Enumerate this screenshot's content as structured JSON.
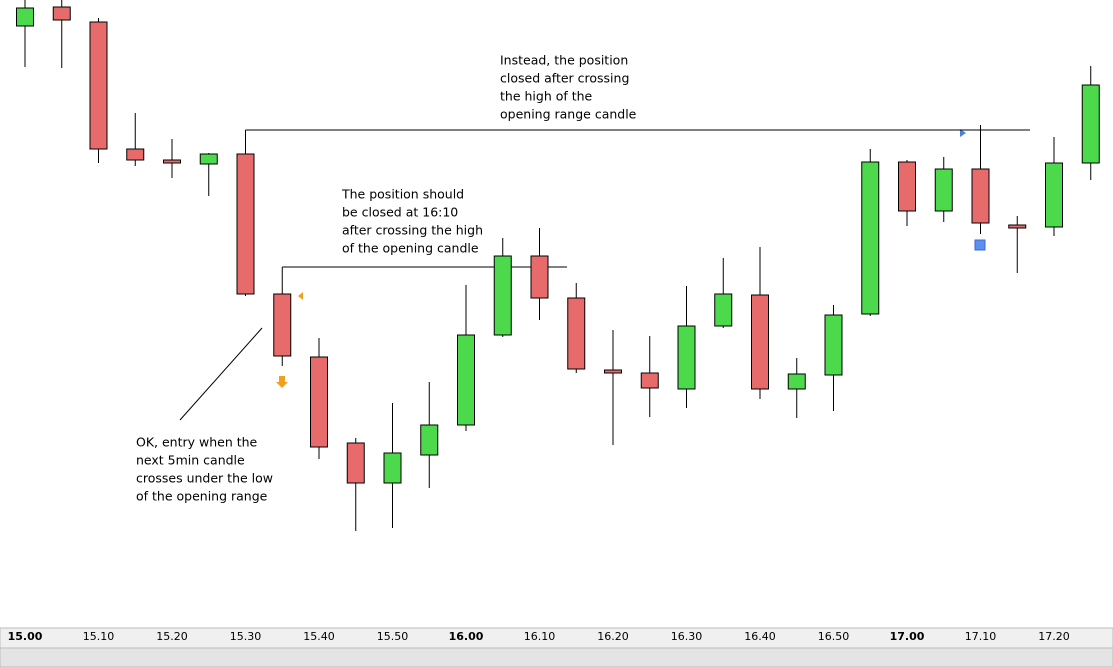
{
  "chart_data": {
    "type": "candlestick",
    "categories": [
      "15.00",
      null,
      "15.10",
      null,
      "15.20",
      null,
      "15.30",
      null,
      "15.40",
      null,
      "15.50",
      null,
      "16.00",
      null,
      "16.10",
      null,
      "16.20",
      null,
      "16.30",
      null,
      "16.40",
      null,
      "16.50",
      null,
      "17.00",
      null,
      "17.10",
      null,
      "17.20",
      null
    ],
    "open": [
      601,
      620,
      605,
      478,
      467,
      463,
      473,
      333,
      270,
      184,
      144,
      172,
      202,
      292,
      371,
      329,
      257,
      254,
      238,
      301,
      332,
      238,
      252,
      313,
      465,
      416,
      458,
      402,
      400,
      464
    ],
    "high": [
      627,
      627,
      609,
      514,
      488,
      474,
      497,
      360,
      289,
      189,
      224,
      245,
      342,
      389,
      399,
      344,
      297,
      291,
      341,
      369,
      380,
      269,
      322,
      478,
      467,
      470,
      502,
      411,
      490,
      561
    ],
    "low": [
      560,
      559,
      464,
      461,
      449,
      431,
      331,
      261,
      168,
      96,
      99,
      139,
      196,
      290,
      307,
      254,
      182,
      210,
      219,
      299,
      228,
      209,
      216,
      311,
      401,
      405,
      393,
      354,
      391,
      447
    ],
    "close": [
      619,
      607,
      478,
      467,
      464,
      473,
      333,
      271,
      180,
      144,
      174,
      202,
      292,
      371,
      329,
      258,
      254,
      239,
      301,
      333,
      238,
      253,
      312,
      465,
      416,
      458,
      404,
      399,
      464,
      542
    ],
    "up_color": "#4cd94c",
    "down_color": "#e86b6b",
    "ylim": [
      0,
      627
    ],
    "annotations": [
      [
        "Instead, the position",
        "closed after crossing",
        "the high of the",
        "opening range candle"
      ],
      [
        "The position should",
        "be closed at 16:10",
        "after crossing the high",
        "of the opening candle"
      ],
      [
        "OK, entry when the",
        "next 5min candle",
        "crosses under the low",
        "of the opening range"
      ]
    ]
  }
}
